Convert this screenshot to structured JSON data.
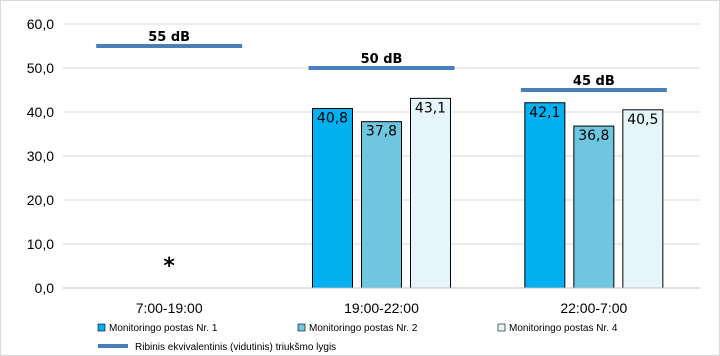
{
  "chart_data": {
    "type": "bar",
    "categories": [
      "7:00-19:00",
      "19:00-22:00",
      "22:00-7:00"
    ],
    "ylim": [
      0,
      60
    ],
    "yticks": [
      "0,0",
      "10,0",
      "20,0",
      "30,0",
      "40,0",
      "50,0",
      "60,0"
    ],
    "grid": true,
    "legend_position": "bottom",
    "series": [
      {
        "name": "Monitoringo postas Nr. 1",
        "color": "#00b0f0",
        "values": [
          null,
          40.8,
          42.1
        ],
        "labels": [
          "",
          "40,8",
          "42,1"
        ]
      },
      {
        "name": "Monitoringo postas Nr. 2",
        "color": "#6fc6e0",
        "values": [
          null,
          37.8,
          36.8
        ],
        "labels": [
          "",
          "37,8",
          "36,8"
        ]
      },
      {
        "name": "Monitoringo postas Nr. 4",
        "color": "#e6f5fb",
        "values": [
          null,
          43.1,
          40.5
        ],
        "labels": [
          "",
          "43,1",
          "40,5"
        ]
      }
    ],
    "limit": {
      "name": "Ribinis ekvivalentinis (vidutinis) triukšmo lygis",
      "color": "#4a7ebb",
      "values": [
        55,
        50,
        45
      ],
      "labels": [
        "55 dB",
        "50 dB",
        "45 dB"
      ]
    },
    "annotation": "*"
  }
}
